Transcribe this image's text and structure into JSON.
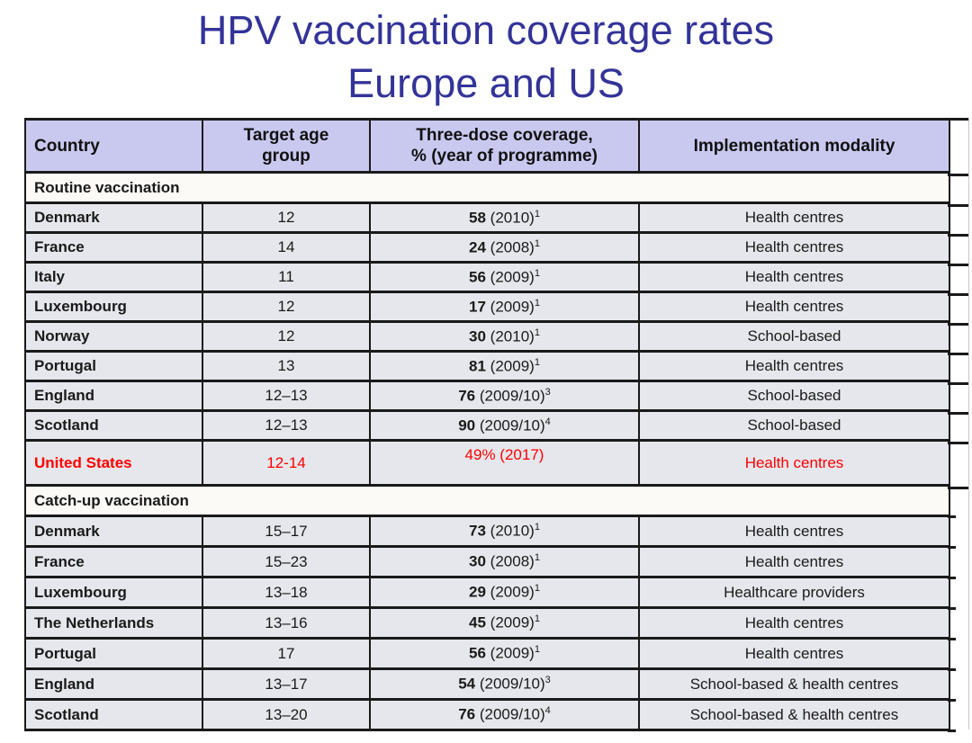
{
  "title": {
    "line1": "HPV vaccination coverage rates",
    "line2": "Europe and US"
  },
  "colors": {
    "title_blue": "#333399",
    "header_bg": "#c9c9f0",
    "row_bg": "#e6e7ec",
    "section_bg": "#fbfaf6",
    "highlight_red": "#ff0000",
    "border": "#1a1a1a"
  },
  "table": {
    "headers": [
      "Country",
      "Target age\ngroup",
      "Three-dose coverage,\n% (year of programme)",
      "Implementation modality"
    ],
    "rows": [
      {
        "type": "section",
        "label": "Routine vaccination"
      },
      {
        "type": "data",
        "country": "Denmark",
        "age": "12",
        "coverage": {
          "value": "58",
          "year": " (2010)",
          "sup": "1"
        },
        "modality": "Health centres"
      },
      {
        "type": "data",
        "country": "France",
        "age": "14",
        "coverage": {
          "value": "24",
          "year": " (2008)",
          "sup": "1"
        },
        "modality": "Health centres"
      },
      {
        "type": "data",
        "country": "Italy",
        "age": "11",
        "coverage": {
          "value": "56",
          "year": " (2009)",
          "sup": "1"
        },
        "modality": "Health centres"
      },
      {
        "type": "data",
        "country": "Luxembourg",
        "age": "12",
        "coverage": {
          "value": "17",
          "year": " (2009)",
          "sup": "1"
        },
        "modality": "Health centres"
      },
      {
        "type": "data",
        "country": "Norway",
        "age": "12",
        "coverage": {
          "value": "30",
          "year": " (2010)",
          "sup": "1"
        },
        "modality": "School-based"
      },
      {
        "type": "data",
        "country": "Portugal",
        "age": "13",
        "coverage": {
          "value": "81",
          "year": " (2009)",
          "sup": "1"
        },
        "modality": "Health centres"
      },
      {
        "type": "data",
        "country": "England",
        "age": "12–13",
        "coverage": {
          "value": "76",
          "year": " (2009/10)",
          "sup": "3"
        },
        "modality": "School-based"
      },
      {
        "type": "data",
        "country": "Scotland",
        "age": "12–13",
        "coverage": {
          "value": "90",
          "year": " (2009/10)",
          "sup": "4"
        },
        "modality": "School-based"
      },
      {
        "type": "data",
        "highlight": true,
        "country": "United States",
        "age": "12-14",
        "coverage": {
          "plain": "49% (2017)"
        },
        "modality": "Health centres"
      },
      {
        "type": "section",
        "label": "Catch-up vaccination"
      },
      {
        "type": "data",
        "country": "Denmark",
        "age": "15–17",
        "coverage": {
          "value": "73",
          "year": " (2010)",
          "sup": "1"
        },
        "modality": "Health centres"
      },
      {
        "type": "data",
        "country": "France",
        "age": "15–23",
        "coverage": {
          "value": "30",
          "year": " (2008)",
          "sup": "1"
        },
        "modality": "Health centres"
      },
      {
        "type": "data",
        "country": "Luxembourg",
        "age": "13–18",
        "coverage": {
          "value": "29",
          "year": " (2009)",
          "sup": "1"
        },
        "modality": "Healthcare providers"
      },
      {
        "type": "data",
        "country": "The Netherlands",
        "age": "13–16",
        "coverage": {
          "value": "45",
          "year": " (2009)",
          "sup": "1"
        },
        "modality": "Health centres"
      },
      {
        "type": "data",
        "country": "Portugal",
        "age": "17",
        "coverage": {
          "value": "56",
          "year": " (2009)",
          "sup": "1"
        },
        "modality": "Health centres"
      },
      {
        "type": "data",
        "country": "England",
        "age": "13–17",
        "coverage": {
          "value": "54",
          "year": " (2009/10)",
          "sup": "3"
        },
        "modality": "School-based & health centres"
      },
      {
        "type": "data",
        "country": "Scotland",
        "age": "13–20",
        "coverage": {
          "value": "76",
          "year": " (2009/10)",
          "sup": "4"
        },
        "modality": "School-based & health centres"
      }
    ]
  }
}
